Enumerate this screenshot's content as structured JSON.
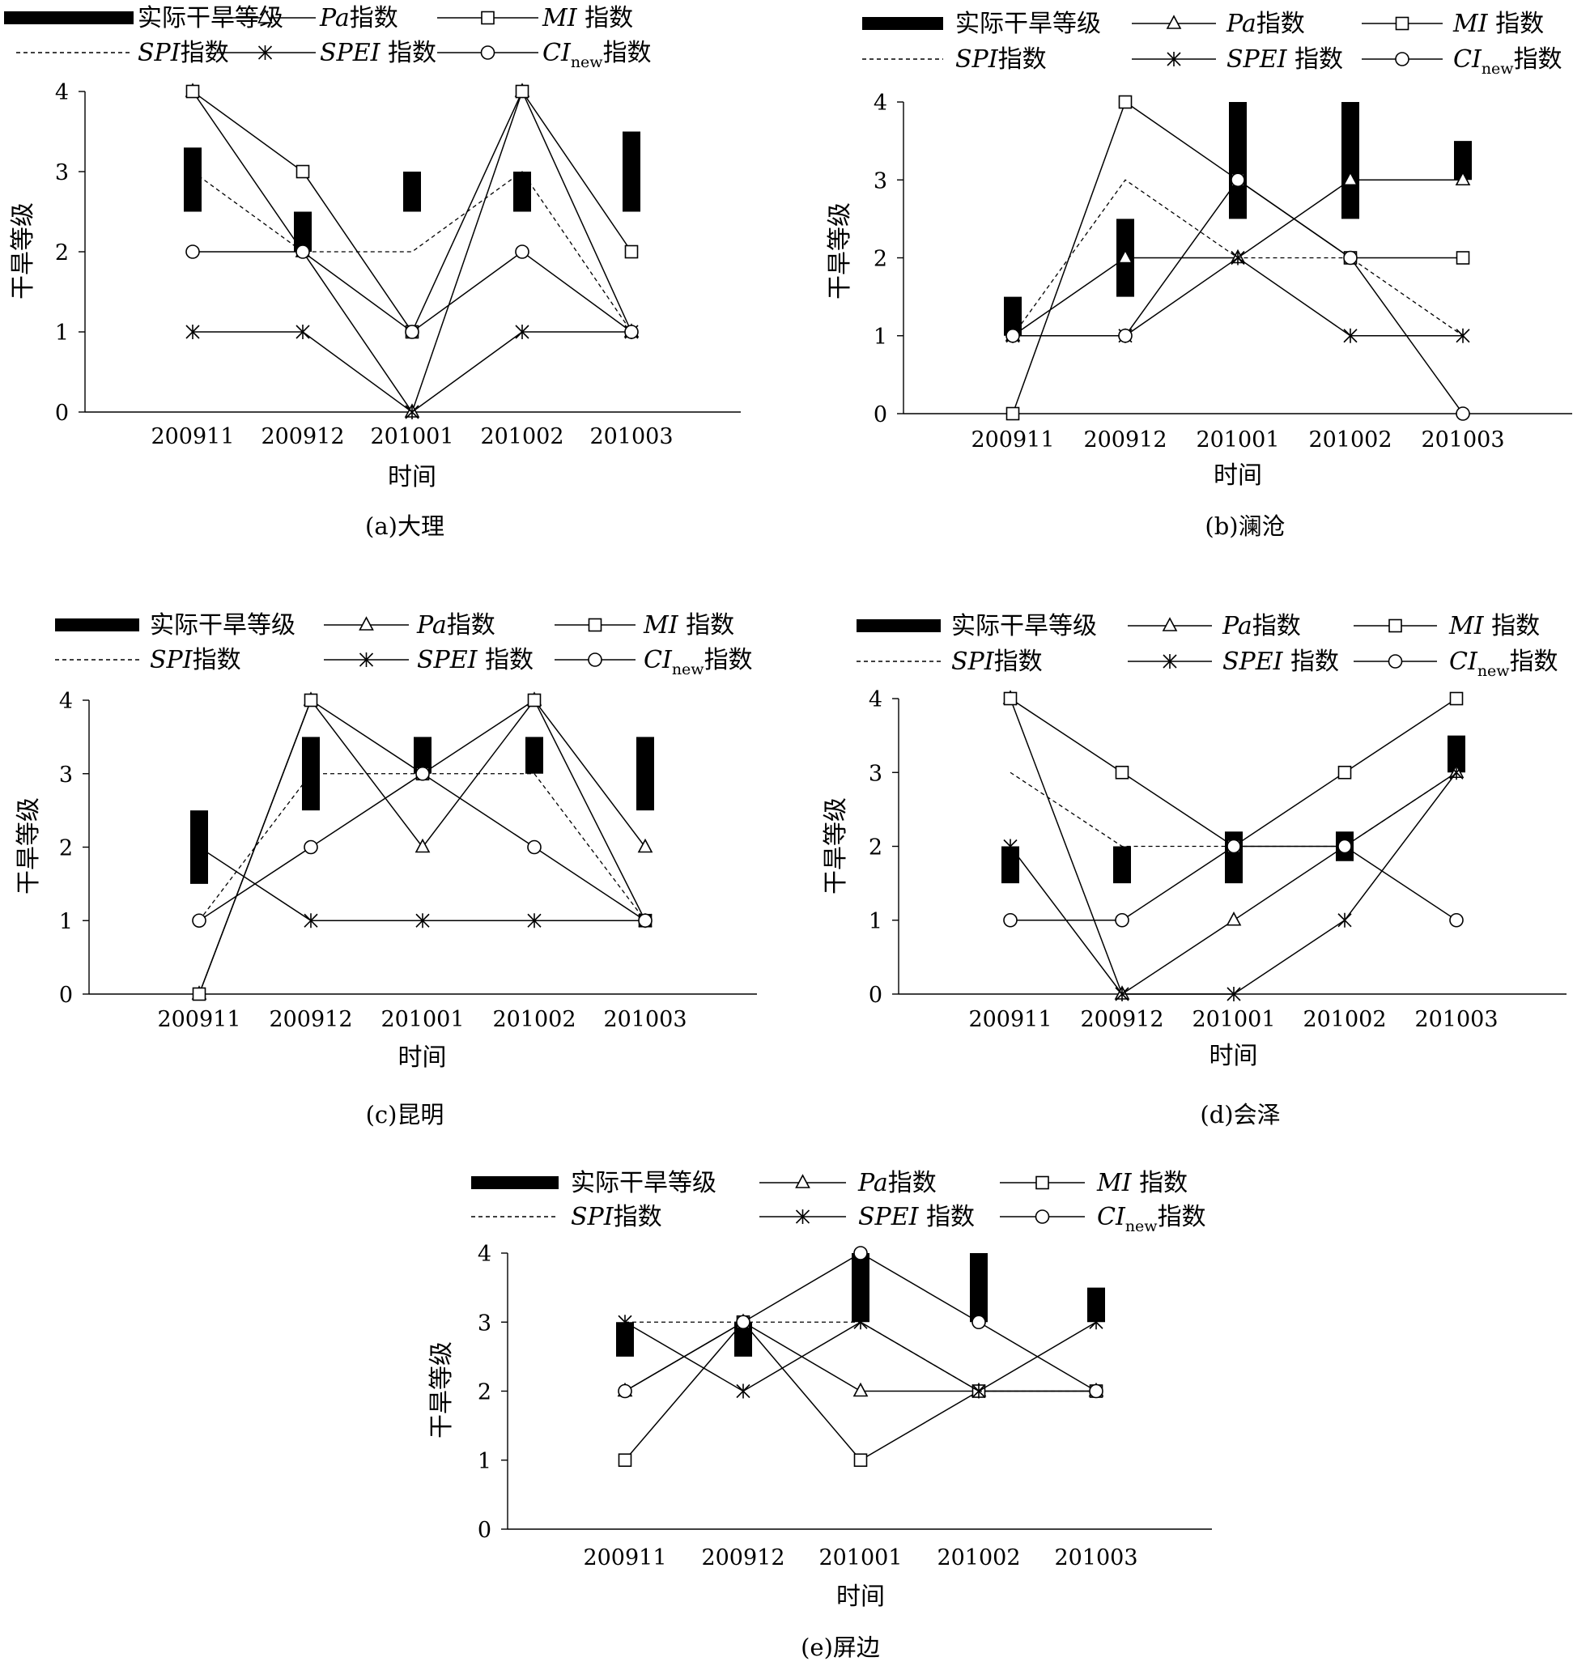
{
  "legend": {
    "actual": "实际干旱等级",
    "pa": "Pa",
    "mi": "MI",
    "spi": "SPI",
    "spei": "SPEI",
    "ci": "CI",
    "ci_sub": "new",
    "suffix": "指数"
  },
  "chart_data": [
    {
      "type": "line",
      "caption": "(a)大理",
      "xlabel": "时间",
      "ylabel": "干旱等级",
      "ylim": [
        0,
        4
      ],
      "yticks": [
        "0",
        "1",
        "2",
        "3",
        "4"
      ],
      "categories": [
        "200911",
        "200912",
        "201001",
        "201002",
        "201003"
      ],
      "actual_range": [
        [
          2.5,
          3.3
        ],
        [
          2.0,
          2.5
        ],
        [
          2.5,
          3.0
        ],
        [
          2.5,
          3.0
        ],
        [
          2.5,
          3.5
        ]
      ],
      "series": [
        {
          "name": "Pa指数",
          "values": [
            4,
            2,
            0,
            4,
            1
          ]
        },
        {
          "name": "MI指数",
          "values": [
            4,
            3,
            1,
            4,
            2
          ]
        },
        {
          "name": "SPI指数",
          "values": [
            3,
            2,
            2,
            3,
            1
          ]
        },
        {
          "name": "SPEI指数",
          "values": [
            1,
            1,
            0,
            1,
            1
          ]
        },
        {
          "name": "CInew指数",
          "values": [
            2,
            2,
            1,
            2,
            1
          ]
        }
      ]
    },
    {
      "type": "line",
      "caption": "(b)澜沧",
      "xlabel": "时间",
      "ylabel": "干旱等级",
      "ylim": [
        0,
        4
      ],
      "yticks": [
        "0",
        "1",
        "2",
        "3",
        "4"
      ],
      "categories": [
        "200911",
        "200912",
        "201001",
        "201002",
        "201003"
      ],
      "actual_range": [
        [
          1.0,
          1.5
        ],
        [
          1.5,
          2.5
        ],
        [
          2.5,
          4.0
        ],
        [
          2.5,
          4.0
        ],
        [
          3.0,
          3.5
        ]
      ],
      "series": [
        {
          "name": "Pa指数",
          "values": [
            1,
            2,
            2,
            3,
            3
          ]
        },
        {
          "name": "MI指数",
          "values": [
            0,
            4,
            3,
            2,
            2
          ]
        },
        {
          "name": "SPI指数",
          "values": [
            1,
            3,
            2,
            2,
            1
          ]
        },
        {
          "name": "SPEI指数",
          "values": [
            1,
            1,
            2,
            1,
            1
          ]
        },
        {
          "name": "CInew指数",
          "values": [
            1,
            1,
            3,
            2,
            0
          ]
        }
      ]
    },
    {
      "type": "line",
      "caption": "(c)昆明",
      "xlabel": "时间",
      "ylabel": "干旱等级",
      "ylim": [
        0,
        4
      ],
      "yticks": [
        "0",
        "1",
        "2",
        "3",
        "4"
      ],
      "categories": [
        "200911",
        "200912",
        "201001",
        "201002",
        "201003"
      ],
      "actual_range": [
        [
          1.5,
          2.5
        ],
        [
          2.5,
          3.5
        ],
        [
          3.0,
          3.5
        ],
        [
          3.0,
          3.5
        ],
        [
          2.5,
          3.5
        ]
      ],
      "series": [
        {
          "name": "Pa指数",
          "values": [
            0,
            4,
            2,
            4,
            2
          ]
        },
        {
          "name": "MI指数",
          "values": [
            0,
            4,
            3,
            4,
            1
          ]
        },
        {
          "name": "SPI指数",
          "values": [
            1,
            3,
            3,
            3,
            1
          ]
        },
        {
          "name": "SPEI指数",
          "values": [
            2,
            1,
            1,
            1,
            1
          ]
        },
        {
          "name": "CInew指数",
          "values": [
            1,
            2,
            3,
            2,
            1
          ]
        }
      ]
    },
    {
      "type": "line",
      "caption": "(d)会泽",
      "xlabel": "时间",
      "ylabel": "干旱等级",
      "ylim": [
        0,
        4
      ],
      "yticks": [
        "0",
        "1",
        "2",
        "3",
        "4"
      ],
      "categories": [
        "200911",
        "200912",
        "201001",
        "201002",
        "201003"
      ],
      "actual_range": [
        [
          1.5,
          2.0
        ],
        [
          1.5,
          2.0
        ],
        [
          1.5,
          2.2
        ],
        [
          1.8,
          2.2
        ],
        [
          3.0,
          3.5
        ]
      ],
      "series": [
        {
          "name": "Pa指数",
          "values": [
            4,
            0,
            1,
            2,
            3
          ]
        },
        {
          "name": "MI指数",
          "values": [
            4,
            3,
            2,
            3,
            4
          ]
        },
        {
          "name": "SPI指数",
          "values": [
            3,
            2,
            2,
            2,
            3
          ]
        },
        {
          "name": "SPEI指数",
          "values": [
            2,
            0,
            0,
            1,
            3
          ]
        },
        {
          "name": "CInew指数",
          "values": [
            1,
            1,
            2,
            2,
            1
          ]
        }
      ]
    },
    {
      "type": "line",
      "caption": "(e)屏边",
      "xlabel": "时间",
      "ylabel": "干旱等级",
      "ylim": [
        0,
        4
      ],
      "yticks": [
        "0",
        "1",
        "2",
        "3",
        "4"
      ],
      "categories": [
        "200911",
        "200912",
        "201001",
        "201002",
        "201003"
      ],
      "actual_range": [
        [
          2.5,
          3.0
        ],
        [
          2.5,
          3.0
        ],
        [
          3.0,
          4.0
        ],
        [
          3.0,
          4.0
        ],
        [
          3.0,
          3.5
        ]
      ],
      "series": [
        {
          "name": "Pa指数",
          "values": [
            2,
            3,
            2,
            2,
            2
          ]
        },
        {
          "name": "MI指数",
          "values": [
            1,
            3,
            1,
            2,
            2
          ]
        },
        {
          "name": "SPI指数",
          "values": [
            3,
            3,
            3,
            2,
            2
          ]
        },
        {
          "name": "SPEI指数",
          "values": [
            3,
            2,
            3,
            2,
            3
          ]
        },
        {
          "name": "CInew指数",
          "values": [
            2,
            3,
            4,
            3,
            2
          ]
        }
      ]
    }
  ]
}
